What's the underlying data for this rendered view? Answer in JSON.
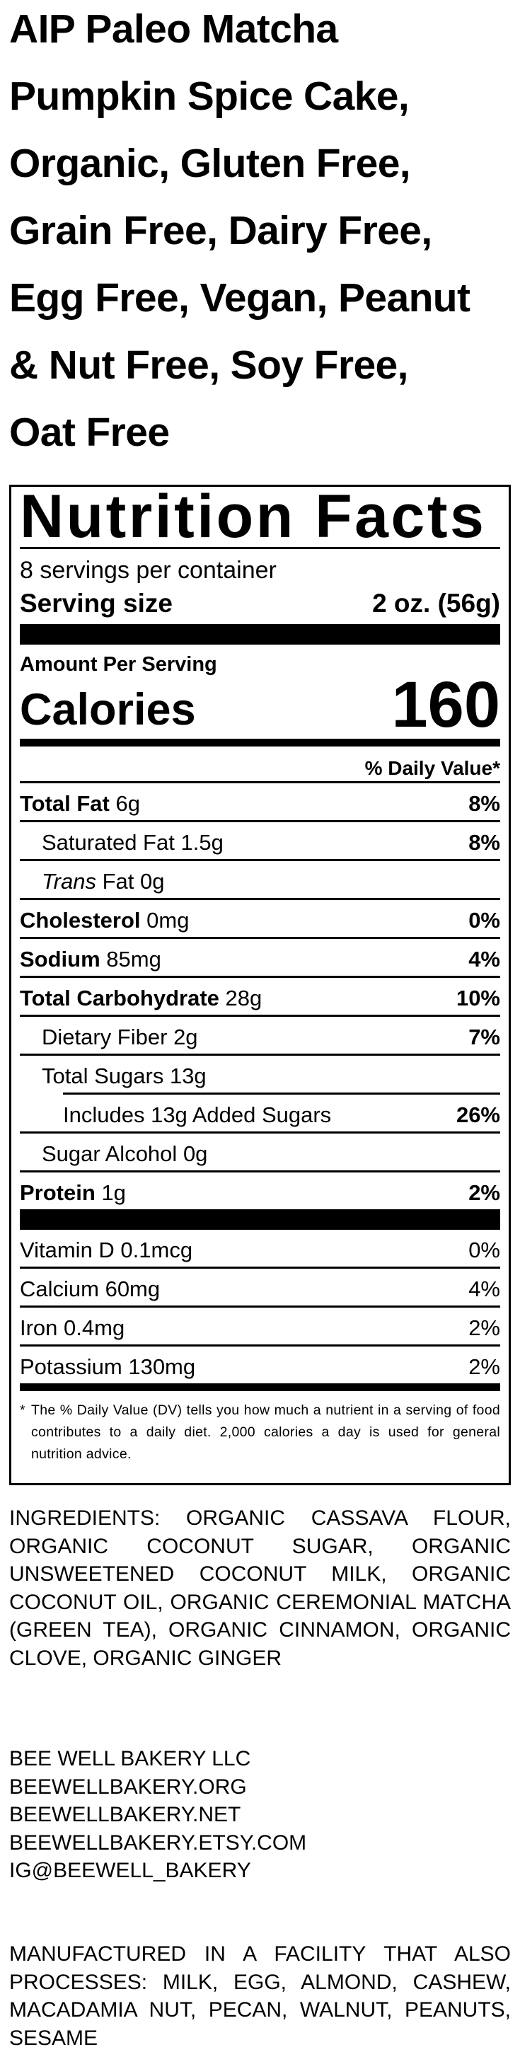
{
  "product_title_lines": [
    "AIP Paleo Matcha",
    "Pumpkin Spice Cake,",
    "Organic, Gluten Free,",
    "Grain Free, Dairy Free,",
    "Egg Free, Vegan, Peanut",
    "& Nut Free, Soy Free,",
    "Oat Free"
  ],
  "nutrition": {
    "heading": "Nutrition Facts",
    "servings_per_container": "8 servings per container",
    "serving_size_label": "Serving size",
    "serving_size_value": "2 oz. (56g)",
    "amount_per_serving": "Amount Per Serving",
    "calories_label": "Calories",
    "calories_value": "160",
    "daily_value_header": "% Daily Value*",
    "rows": [
      {
        "name": "Total Fat",
        "amount": "6g",
        "dv": "8%"
      },
      {
        "name": "Saturated Fat",
        "amount": "1.5g",
        "dv": "8%"
      },
      {
        "name": "Trans",
        "amount": "Fat 0g",
        "dv": ""
      },
      {
        "name": "Cholesterol",
        "amount": "0mg",
        "dv": "0%"
      },
      {
        "name": "Sodium",
        "amount": "85mg",
        "dv": "4%"
      },
      {
        "name": "Total Carbohydrate",
        "amount": "28g",
        "dv": "10%"
      },
      {
        "name": "Dietary Fiber",
        "amount": "2g",
        "dv": "7%"
      },
      {
        "name": "Total Sugars",
        "amount": "13g",
        "dv": ""
      },
      {
        "name": "Includes 13g Added Sugars",
        "amount": "",
        "dv": "26%"
      },
      {
        "name": "Sugar Alcohol",
        "amount": "0g",
        "dv": ""
      },
      {
        "name": "Protein",
        "amount": "1g",
        "dv": "2%"
      }
    ],
    "vitamins": [
      {
        "text": "Vitamin D 0.1mcg",
        "dv": "0%"
      },
      {
        "text": "Calcium 60mg",
        "dv": "4%"
      },
      {
        "text": "Iron 0.4mg",
        "dv": "2%"
      },
      {
        "text": "Potassium 130mg",
        "dv": "2%"
      }
    ],
    "footnote_star": "*",
    "footnote": "The % Daily Value (DV) tells you how much a nutrient in a serving of food contributes to a daily diet. 2,000 calories a day is used for general nutrition advice."
  },
  "ingredients": "INGREDIENTS: ORGANIC CASSAVA FLOUR, ORGANIC COCONUT SUGAR, ORGANIC UNSWEETENED COCONUT MILK, ORGANIC COCONUT OIL, ORGANIC CEREMONIAL MATCHA (GREEN TEA), ORGANIC CINNAMON, ORGANIC CLOVE, ORGANIC GINGER",
  "company_lines": [
    "BEE WELL BAKERY LLC",
    "BEEWELLBAKERY.ORG",
    "BEEWELLBAKERY.NET",
    "BEEWELLBAKERY.ETSY.COM",
    "IG@BEEWELL_BAKERY"
  ],
  "allergen_statement": "MANUFACTURED IN A FACILITY THAT ALSO PROCESSES: MILK, EGG, ALMOND, CASHEW, MACADAMIA NUT, PECAN, WALNUT, PEANUTS, SESAME"
}
